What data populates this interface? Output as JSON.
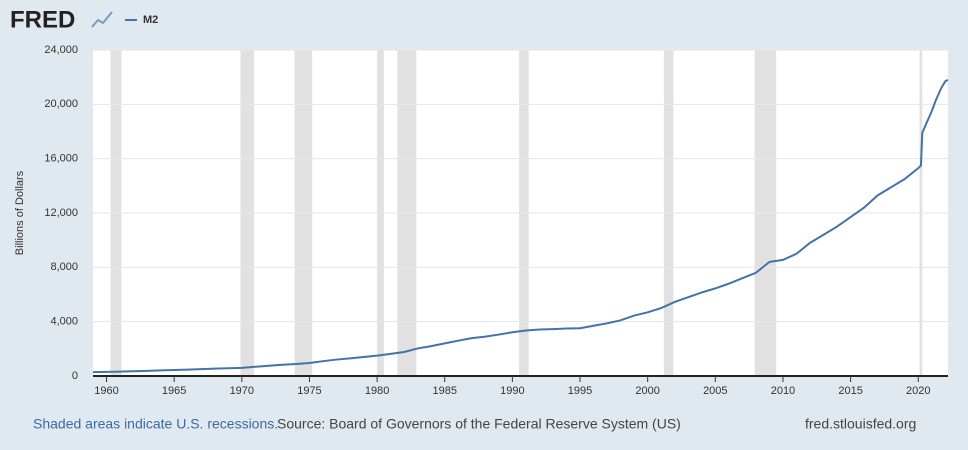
{
  "logo": "FRED",
  "chart_data": {
    "type": "line",
    "y_label": "Billions of Dollars",
    "x": [
      1959,
      1960,
      1961,
      1962,
      1963,
      1964,
      1965,
      1966,
      1967,
      1968,
      1969,
      1970,
      1971,
      1972,
      1973,
      1974,
      1975,
      1976,
      1977,
      1978,
      1979,
      1980,
      1981,
      1982,
      1983,
      1984,
      1985,
      1986,
      1987,
      1988,
      1989,
      1990,
      1991,
      1992,
      1993,
      1994,
      1995,
      1996,
      1997,
      1998,
      1999,
      2000,
      2001,
      2002,
      2003,
      2004,
      2005,
      2006,
      2007,
      2008,
      2009,
      2010,
      2011,
      2012,
      2013,
      2014,
      2015,
      2016,
      2017,
      2018,
      2019,
      2020,
      2020.2,
      2020.3,
      2020.6,
      2021,
      2021.3,
      2021.7,
      2022,
      2022.2
    ],
    "series": [
      {
        "name": "M2",
        "color": "#4572a7",
        "values": [
          287,
          304,
          325,
          350,
          380,
          410,
          445,
          470,
          510,
          545,
          575,
          600,
          680,
          755,
          830,
          880,
          960,
          1090,
          1210,
          1300,
          1400,
          1500,
          1630,
          1770,
          2030,
          2200,
          2400,
          2600,
          2790,
          2900,
          3050,
          3220,
          3350,
          3420,
          3450,
          3500,
          3520,
          3700,
          3880,
          4100,
          4450,
          4690,
          5000,
          5450,
          5800,
          6150,
          6450,
          6800,
          7200,
          7600,
          8400,
          8550,
          9000,
          9800,
          10400,
          11000,
          11700,
          12400,
          13300,
          13900,
          14500,
          15300,
          15500,
          17900,
          18600,
          19500,
          20300,
          21200,
          21700,
          21800
        ]
      }
    ],
    "recessions": [
      [
        1960.3,
        1961.1
      ],
      [
        1969.9,
        1970.9
      ],
      [
        1973.9,
        1975.2
      ],
      [
        1980.0,
        1980.5
      ],
      [
        1981.5,
        1982.9
      ],
      [
        1990.5,
        1991.2
      ],
      [
        2001.2,
        2001.9
      ],
      [
        2007.9,
        2009.5
      ],
      [
        2020.1,
        2020.3
      ]
    ],
    "recession_color": "#e1e1e1",
    "xlim": [
      1959,
      2022.2
    ],
    "xticks": [
      1960,
      1965,
      1970,
      1975,
      1980,
      1985,
      1990,
      1995,
      2000,
      2005,
      2010,
      2015,
      2020
    ],
    "ylim": [
      0,
      24000
    ],
    "yticks": [
      0,
      {
        "value": 4000,
        "label": "4,000"
      },
      {
        "value": 8000,
        "label": "8,000"
      },
      {
        "value": 12000,
        "label": "12,000"
      },
      {
        "value": 16000,
        "label": "16,000"
      },
      {
        "value": 20000,
        "label": "20,000"
      },
      {
        "value": 24000,
        "label": "24,000"
      }
    ],
    "grid": true
  },
  "footer": {
    "note": "Shaded areas indicate U.S. recessions.",
    "source": "Source: Board of Governors of the Federal Reserve System (US)",
    "site": "fred.stlouisfed.org"
  }
}
